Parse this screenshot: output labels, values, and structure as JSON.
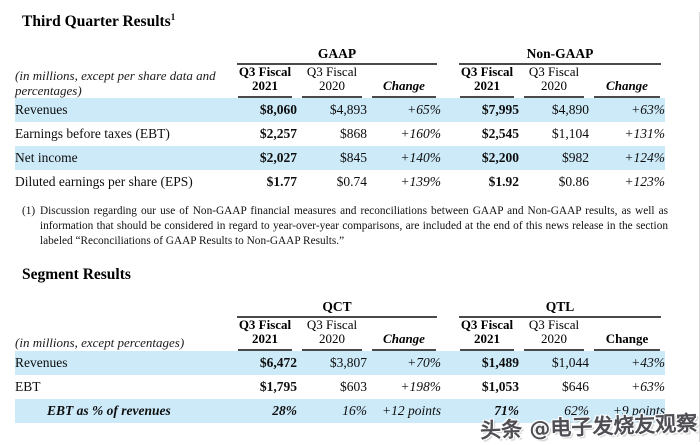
{
  "document": {
    "section1_title": "Third Quarter Results",
    "section1_title_sup": "1",
    "section2_title": "Segment Results",
    "footnote": {
      "marker": "(1)",
      "text": "Discussion regarding our use of Non-GAAP financial measures and reconciliations between GAAP and Non-GAAP results, as well as information that should be considered in regard to year-over-year comparisons, are included at the end of this news release in the section labeled “Reconciliations of GAAP Results to Non-GAAP Results.”"
    },
    "watermark": "头条 @电子发烧友观察"
  },
  "colors": {
    "row_highlight": "#cdeaf9",
    "rule": "#4a4a4a",
    "watermark_text": "#4e4e54"
  },
  "quarterly_table": {
    "units_note": "(in millions, except per share data and percentages)",
    "group1": "GAAP",
    "group2": "Non-GAAP",
    "col_2021_line1": "Q3 Fiscal",
    "col_2021_line2": "2021",
    "col_2020_line1": "Q3 Fiscal",
    "col_2020_line2": "2020",
    "col_change": "Change",
    "rows": [
      {
        "label": "Revenues",
        "cells": [
          "$8,060",
          "$4,893",
          "+65%",
          "$7,995",
          "$4,890",
          "+63%"
        ]
      },
      {
        "label": "Earnings before taxes (EBT)",
        "cells": [
          "$2,257",
          "$868",
          "+160%",
          "$2,545",
          "$1,104",
          "+131%"
        ]
      },
      {
        "label": "Net income",
        "cells": [
          "$2,027",
          "$845",
          "+140%",
          "$2,200",
          "$982",
          "+124%"
        ]
      },
      {
        "label": "Diluted earnings per share (EPS)",
        "cells": [
          "$1.77",
          "$0.74",
          "+139%",
          "$1.92",
          "$0.86",
          "+123%"
        ]
      }
    ]
  },
  "segment_table": {
    "units_note": "(in millions, except percentages)",
    "group1": "QCT",
    "group2": "QTL",
    "col_2021_line1": "Q3 Fiscal",
    "col_2021_line2": "2021",
    "col_2020_line1": "Q3 Fiscal",
    "col_2020_line2": "2020",
    "col_change": "Change",
    "rows": [
      {
        "label": "Revenues",
        "cells": [
          "$6,472",
          "$3,807",
          "+70%",
          "$1,489",
          "$1,044",
          "+43%"
        ]
      },
      {
        "label": "EBT",
        "cells": [
          "$1,795",
          "$603",
          "+198%",
          "$1,053",
          "$646",
          "+63%"
        ]
      },
      {
        "label": "EBT as % of revenues",
        "cells": [
          "28%",
          "16%",
          "+12 points",
          "71%",
          "62%",
          "+9 points"
        ]
      }
    ]
  }
}
